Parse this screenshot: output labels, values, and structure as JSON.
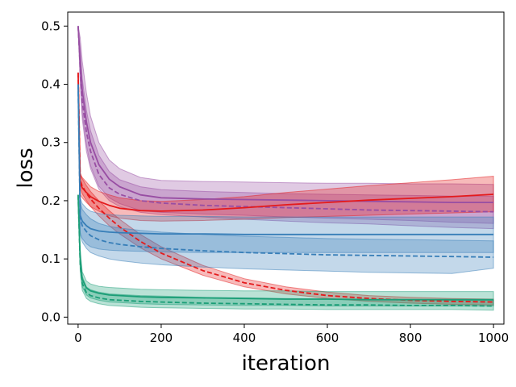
{
  "chart_data": {
    "type": "line",
    "title": "",
    "xlabel": "iteration",
    "ylabel": "loss",
    "xlim": [
      -25,
      1025
    ],
    "ylim": [
      -0.012,
      0.524
    ],
    "xticks": [
      0,
      200,
      400,
      600,
      800,
      1000
    ],
    "yticks": [
      0.0,
      0.1,
      0.2,
      0.3,
      0.4,
      0.5
    ],
    "xtick_labels": [
      "0",
      "200",
      "400",
      "600",
      "800",
      "1000"
    ],
    "ytick_labels": [
      "0.0",
      "0.1",
      "0.2",
      "0.3",
      "0.4",
      "0.5"
    ],
    "grid": false,
    "legend": "none",
    "x": [
      0,
      5,
      10,
      20,
      30,
      50,
      75,
      100,
      150,
      200,
      300,
      400,
      500,
      600,
      700,
      800,
      900,
      1000
    ],
    "series": [
      {
        "color": "#984ea3",
        "style": "solid",
        "values": [
          0.5,
          0.44,
          0.39,
          0.335,
          0.3,
          0.262,
          0.237,
          0.224,
          0.21,
          0.205,
          0.203,
          0.202,
          0.201,
          0.2,
          0.199,
          0.198,
          0.197,
          0.197
        ],
        "lower": [
          0.5,
          0.41,
          0.35,
          0.295,
          0.26,
          0.225,
          0.205,
          0.195,
          0.183,
          0.18,
          0.177,
          0.175,
          0.172,
          0.17,
          0.168,
          0.166,
          0.163,
          0.161
        ],
        "upper": [
          0.5,
          0.48,
          0.44,
          0.385,
          0.345,
          0.3,
          0.27,
          0.255,
          0.24,
          0.235,
          0.233,
          0.232,
          0.231,
          0.23,
          0.23,
          0.229,
          0.229,
          0.228
        ]
      },
      {
        "color": "#984ea3",
        "style": "dashed",
        "values": [
          0.5,
          0.43,
          0.37,
          0.318,
          0.285,
          0.245,
          0.222,
          0.211,
          0.2,
          0.196,
          0.192,
          0.19,
          0.188,
          0.186,
          0.184,
          0.183,
          0.182,
          0.181
        ],
        "lower": [
          0.5,
          0.4,
          0.34,
          0.285,
          0.255,
          0.22,
          0.2,
          0.19,
          0.18,
          0.176,
          0.172,
          0.168,
          0.165,
          0.162,
          0.16,
          0.157,
          0.154,
          0.152
        ],
        "upper": [
          0.5,
          0.46,
          0.41,
          0.355,
          0.32,
          0.278,
          0.25,
          0.236,
          0.224,
          0.219,
          0.216,
          0.214,
          0.212,
          0.211,
          0.21,
          0.209,
          0.208,
          0.208
        ]
      },
      {
        "color": "#e41a1c",
        "style": "solid",
        "values": [
          0.42,
          0.23,
          0.222,
          0.214,
          0.207,
          0.199,
          0.192,
          0.187,
          0.183,
          0.182,
          0.184,
          0.188,
          0.193,
          0.197,
          0.201,
          0.204,
          0.207,
          0.211
        ],
        "lower": [
          0.42,
          0.21,
          0.205,
          0.197,
          0.19,
          0.182,
          0.174,
          0.17,
          0.166,
          0.165,
          0.166,
          0.168,
          0.171,
          0.173,
          0.175,
          0.177,
          0.179,
          0.181
        ],
        "upper": [
          0.42,
          0.245,
          0.24,
          0.232,
          0.224,
          0.216,
          0.21,
          0.205,
          0.2,
          0.199,
          0.202,
          0.207,
          0.214,
          0.22,
          0.226,
          0.231,
          0.236,
          0.242
        ]
      },
      {
        "color": "#e41a1c",
        "style": "dashed",
        "values": [
          0.42,
          0.235,
          0.225,
          0.213,
          0.203,
          0.187,
          0.17,
          0.155,
          0.13,
          0.11,
          0.08,
          0.059,
          0.046,
          0.037,
          0.032,
          0.029,
          0.027,
          0.026
        ],
        "lower": [
          0.42,
          0.222,
          0.212,
          0.2,
          0.19,
          0.174,
          0.157,
          0.143,
          0.119,
          0.1,
          0.072,
          0.052,
          0.04,
          0.032,
          0.027,
          0.024,
          0.022,
          0.021
        ],
        "upper": [
          0.42,
          0.248,
          0.238,
          0.226,
          0.216,
          0.2,
          0.183,
          0.168,
          0.142,
          0.121,
          0.089,
          0.066,
          0.052,
          0.043,
          0.037,
          0.034,
          0.032,
          0.031
        ]
      },
      {
        "color": "#377eb8",
        "style": "solid",
        "values": [
          0.4,
          0.175,
          0.165,
          0.157,
          0.152,
          0.148,
          0.146,
          0.145,
          0.144,
          0.143,
          0.143,
          0.142,
          0.142,
          0.142,
          0.142,
          0.142,
          0.142,
          0.142
        ],
        "lower": [
          0.4,
          0.145,
          0.135,
          0.126,
          0.121,
          0.117,
          0.115,
          0.114,
          0.113,
          0.112,
          0.111,
          0.111,
          0.111,
          0.111,
          0.111,
          0.111,
          0.111,
          0.111
        ],
        "upper": [
          0.4,
          0.205,
          0.195,
          0.187,
          0.182,
          0.178,
          0.176,
          0.175,
          0.174,
          0.173,
          0.173,
          0.172,
          0.172,
          0.172,
          0.172,
          0.172,
          0.172,
          0.172
        ]
      },
      {
        "color": "#377eb8",
        "style": "dashed",
        "values": [
          0.4,
          0.17,
          0.157,
          0.147,
          0.14,
          0.133,
          0.128,
          0.125,
          0.121,
          0.118,
          0.114,
          0.111,
          0.109,
          0.107,
          0.106,
          0.105,
          0.104,
          0.103
        ],
        "lower": [
          0.4,
          0.142,
          0.129,
          0.118,
          0.111,
          0.105,
          0.1,
          0.097,
          0.093,
          0.09,
          0.086,
          0.083,
          0.081,
          0.079,
          0.077,
          0.076,
          0.075,
          0.084
        ],
        "upper": [
          0.4,
          0.198,
          0.185,
          0.176,
          0.169,
          0.161,
          0.156,
          0.153,
          0.149,
          0.146,
          0.142,
          0.139,
          0.137,
          0.135,
          0.134,
          0.133,
          0.132,
          0.131
        ]
      },
      {
        "color": "#1b9e77",
        "style": "solid",
        "values": [
          0.21,
          0.1,
          0.065,
          0.05,
          0.045,
          0.041,
          0.038,
          0.037,
          0.035,
          0.034,
          0.033,
          0.032,
          0.031,
          0.031,
          0.03,
          0.03,
          0.03,
          0.03
        ],
        "lower": [
          0.21,
          0.085,
          0.052,
          0.038,
          0.033,
          0.029,
          0.026,
          0.025,
          0.023,
          0.022,
          0.021,
          0.02,
          0.02,
          0.019,
          0.019,
          0.019,
          0.019,
          0.019
        ],
        "upper": [
          0.21,
          0.115,
          0.078,
          0.062,
          0.057,
          0.053,
          0.051,
          0.05,
          0.048,
          0.047,
          0.046,
          0.045,
          0.045,
          0.044,
          0.044,
          0.044,
          0.044,
          0.044
        ]
      },
      {
        "color": "#1b9e77",
        "style": "dashed",
        "values": [
          0.21,
          0.09,
          0.058,
          0.042,
          0.037,
          0.033,
          0.03,
          0.029,
          0.027,
          0.026,
          0.024,
          0.023,
          0.022,
          0.021,
          0.021,
          0.02,
          0.02,
          0.019
        ],
        "lower": [
          0.21,
          0.078,
          0.046,
          0.032,
          0.027,
          0.023,
          0.02,
          0.019,
          0.017,
          0.016,
          0.015,
          0.014,
          0.014,
          0.013,
          0.013,
          0.013,
          0.013,
          0.012
        ],
        "upper": [
          0.21,
          0.102,
          0.07,
          0.052,
          0.047,
          0.043,
          0.04,
          0.039,
          0.037,
          0.036,
          0.034,
          0.033,
          0.032,
          0.031,
          0.03,
          0.03,
          0.029,
          0.029
        ]
      }
    ]
  }
}
